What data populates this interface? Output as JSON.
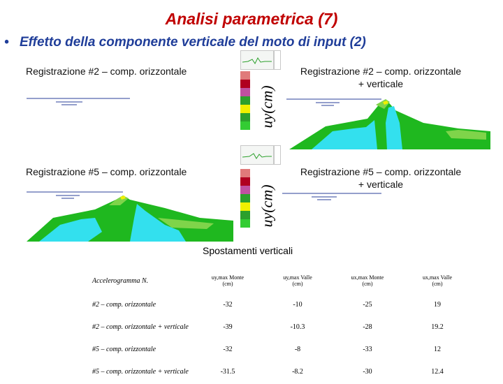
{
  "title": "Analisi parametrica (7)",
  "bullet": {
    "symbol": "•",
    "text": "Effetto della componente verticale del moto di input (2)"
  },
  "panels": {
    "top_left_label": "Registrazione #2 – comp. orizzontale",
    "top_right_label_line1": "Registrazione #2 – comp. orizzontale",
    "top_right_label_line2": "+ verticale",
    "bottom_left_label": "Registrazione #5 – comp. orizzontale",
    "bottom_right_label_line1": "Registrazione #5 – comp. orizzontale",
    "bottom_right_label_line2": "+ verticale",
    "legend_axis_label": "uy(cm)"
  },
  "colors": {
    "title": "#c00000",
    "bullet": "#1f3d99",
    "green": "#1fb81f",
    "light_green": "#7fd44a",
    "cyan": "#33e0ee",
    "legend": [
      "#e07a7a",
      "#b00020",
      "#c050a0",
      "#2ca02c",
      "#f0f000",
      "#2ca02c",
      "#33cc33"
    ]
  },
  "table": {
    "title": "Spostamenti verticali",
    "headers": {
      "col0": "Accelerogramma N.",
      "col1_main": "uy,max Monte",
      "col1_unit": "(cm)",
      "col2_main": "uy,max Valle",
      "col2_unit": "(cm)",
      "col3_main": "ux,max Monte",
      "col3_unit": "(cm)",
      "col4_main": "ux,max Valle",
      "col4_unit": "(cm)"
    },
    "rows": [
      {
        "label": "#2 – comp. orizzontale",
        "c1": "-32",
        "c2": "-10",
        "c3": "-25",
        "c4": "19"
      },
      {
        "label": "#2 – comp. orizzontale + verticale",
        "c1": "-39",
        "c2": "-10.3",
        "c3": "-28",
        "c4": "19.2"
      },
      {
        "label": "#5 – comp. orizzontale",
        "c1": "-32",
        "c2": "-8",
        "c3": "-33",
        "c4": "12"
      },
      {
        "label": "#5 – comp. orizzontale + verticale",
        "c1": "-31.5",
        "c2": "-8.2",
        "c3": "-30",
        "c4": "12.4"
      }
    ]
  }
}
